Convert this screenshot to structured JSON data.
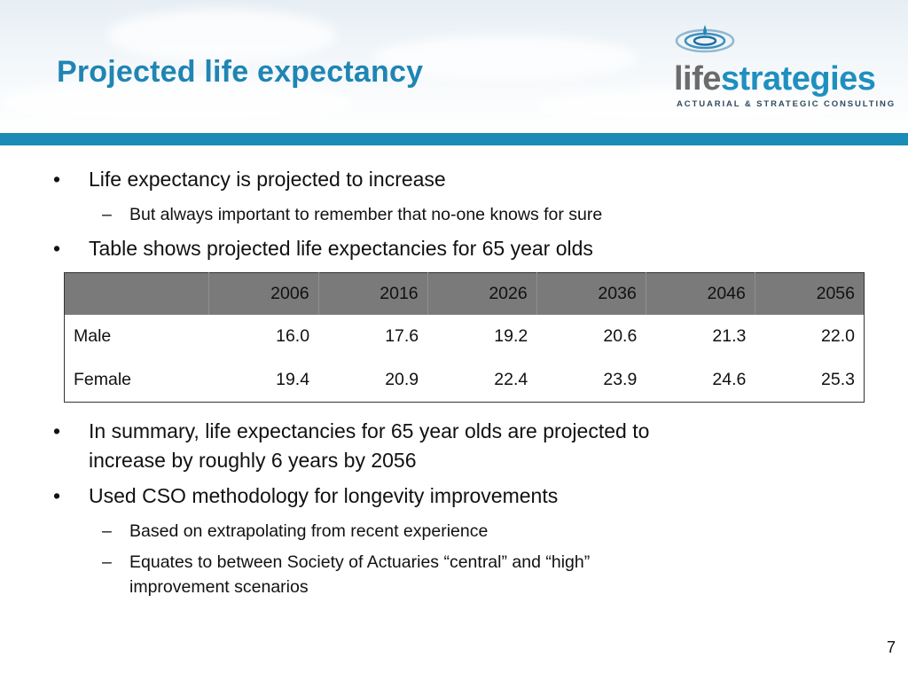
{
  "slide": {
    "title": "Projected life expectancy",
    "page_number": "7",
    "colors": {
      "title": "#1f85b3",
      "band": "#1a8cb5",
      "table_header_bg": "#7a7a7a"
    }
  },
  "logo": {
    "name_part1": "life",
    "name_part2": "strategies",
    "tagline": "ACTUARIAL & STRATEGIC CONSULTING",
    "icon": "water-drop-ripple-icon"
  },
  "bullets_top": [
    {
      "text": "Life expectancy is projected to increase"
    },
    {
      "sub": "But always important to remember that no-one knows for sure"
    },
    {
      "text": "Table shows projected life expectancies for 65 year olds"
    }
  ],
  "table": {
    "columns": [
      "",
      "2006",
      "2016",
      "2026",
      "2036",
      "2046",
      "2056"
    ],
    "rows": [
      {
        "label": "Male",
        "values": [
          "16.0",
          "17.6",
          "19.2",
          "20.6",
          "21.3",
          "22.0"
        ]
      },
      {
        "label": "Female",
        "values": [
          "19.4",
          "20.9",
          "22.4",
          "23.9",
          "24.6",
          "25.3"
        ]
      }
    ]
  },
  "bullets_bottom": [
    {
      "line1": "In summary, life expectancies for 65 year olds are projected to",
      "line2": "increase by roughly 6 years by 2056"
    },
    {
      "text": "Used CSO methodology for longevity improvements"
    },
    {
      "sub": "Based on extrapolating from recent experience"
    },
    {
      "sub_line1": "Equates to between Society of Actuaries “central” and “high”",
      "sub_line2": "improvement scenarios"
    }
  ],
  "glyphs": {
    "bullet": "•",
    "dash": "–"
  }
}
